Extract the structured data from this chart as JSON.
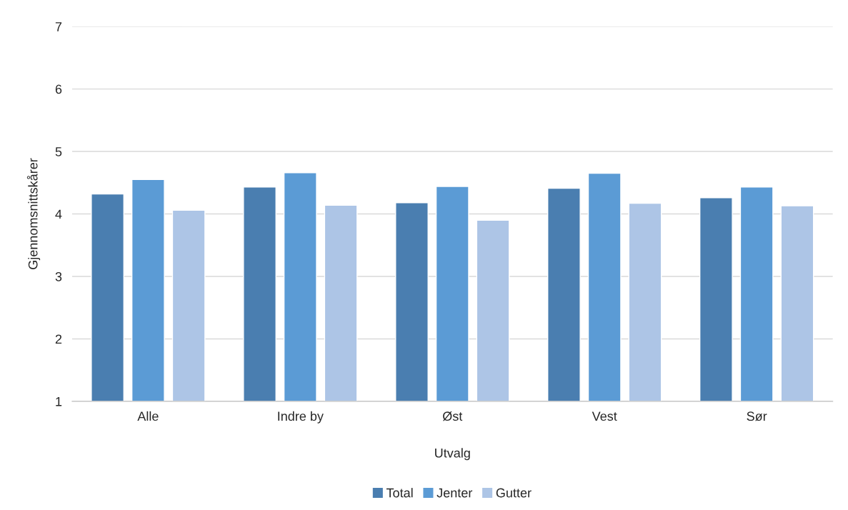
{
  "chart_data": {
    "type": "bar",
    "xlabel": "Utvalg",
    "ylabel": "Gjennomsnittskårer",
    "categories": [
      "Alle",
      "Indre by",
      "Øst",
      "Vest",
      "Sør"
    ],
    "series": [
      {
        "name": "Total",
        "color": "#4a7eb0",
        "values": [
          4.32,
          4.43,
          4.18,
          4.41,
          4.26
        ]
      },
      {
        "name": "Jenter",
        "color": "#5b9bd5",
        "values": [
          4.55,
          4.66,
          4.44,
          4.65,
          4.43
        ]
      },
      {
        "name": "Gutter",
        "color": "#adc5e6",
        "values": [
          4.06,
          4.14,
          3.9,
          4.17,
          4.13
        ]
      }
    ],
    "ylim": [
      1,
      7
    ],
    "yticks": [
      1,
      2,
      3,
      4,
      5,
      6,
      7
    ],
    "grid": "y",
    "legend": "bottom"
  }
}
